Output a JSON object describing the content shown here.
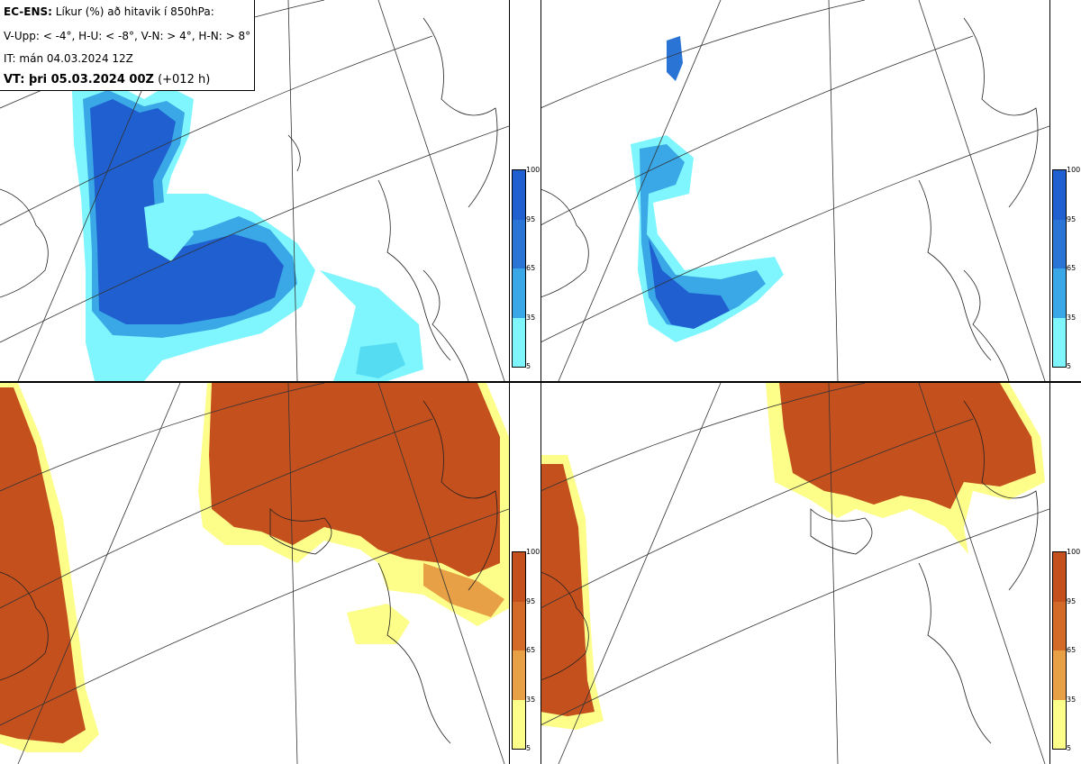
{
  "header": {
    "title_bold": "EC-ENS:",
    "title_rest": " Líkur (%) að hitavik í 850hPa:",
    "thresholds": "V-Upp: < -4°, H-U: < -8°, V-N: > 4°, H-N: > 8°",
    "init_time": "IT: mán 04.03.2024 12Z",
    "valid_bold": "VT: þri 05.03.2024 00Z",
    "valid_rest": " (+012 h)"
  },
  "colorbar_ticks": [
    "100",
    "95",
    "65",
    "35",
    "5"
  ],
  "colors": {
    "cold": [
      "#7ff6fd",
      "#55dcf3",
      "#3aa8e6",
      "#2a74d6",
      "#1f5fd0"
    ],
    "warm": [
      "#fdfd8a",
      "#f4d86a",
      "#e7a046",
      "#d36a28",
      "#c4501e"
    ],
    "coast": "#222222"
  },
  "panels": [
    {
      "id": "top-left",
      "variable": "cold",
      "label_hint": "V-Upp"
    },
    {
      "id": "top-right",
      "variable": "cold",
      "label_hint": "H-U"
    },
    {
      "id": "bottom-left",
      "variable": "warm",
      "label_hint": "V-N"
    },
    {
      "id": "bottom-right",
      "variable": "warm",
      "label_hint": "H-N"
    }
  ]
}
